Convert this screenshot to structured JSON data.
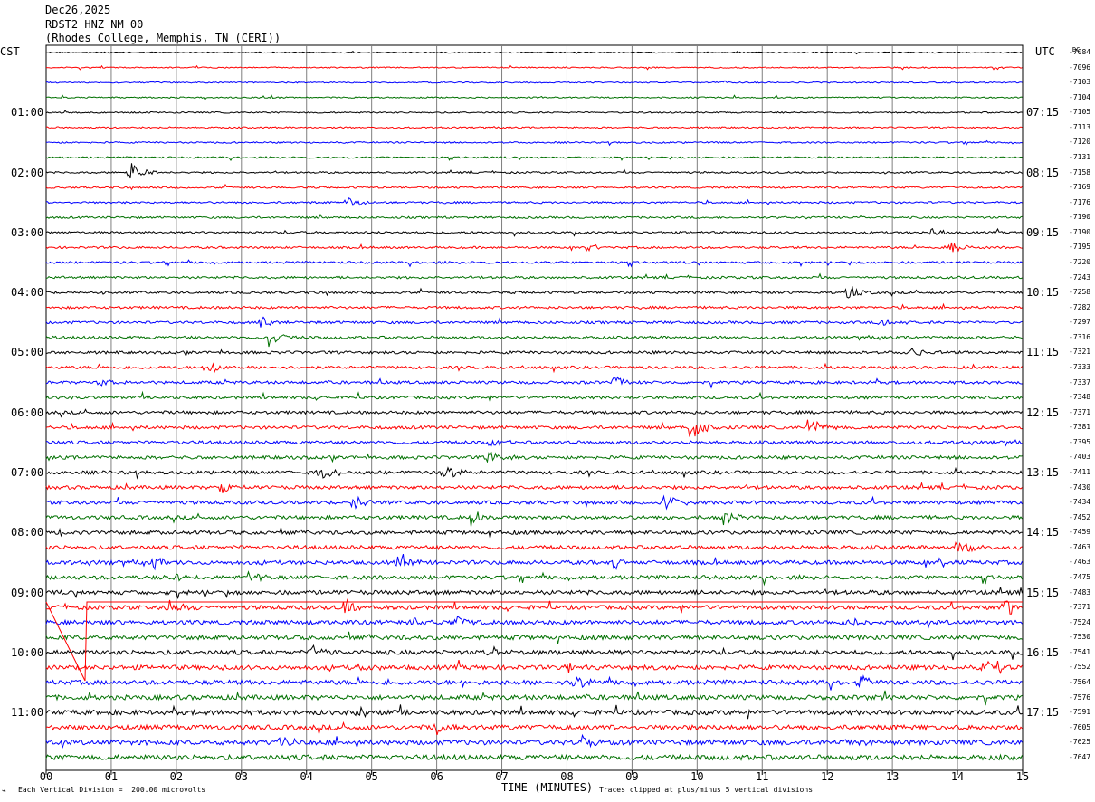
{
  "header": {
    "date": "Dec26,2025",
    "station": "RDST2 HNZ NM 00",
    "location": "(Rhodes College, Memphis, TN (CERI))"
  },
  "left_zone": "CST",
  "right_zone": "UTC",
  "dc_header": "DC",
  "footer": {
    "scale_note": "Each Vertical Division =  200.00 microvolts",
    "xaxis_title": "TIME (MINUTES)",
    "clip_note": "Traces clipped at plus/minus 5 vertical divisions",
    "mark": "⌁"
  },
  "colors": {
    "trace_cycle": [
      "#000000",
      "#ff0000",
      "#0000ff",
      "#007000"
    ],
    "grid": "#7f7f7f"
  },
  "chart_data": {
    "type": "line",
    "title": "RDST2 HNZ NM 00",
    "xlabel": "TIME (MINUTES)",
    "ylabel": "",
    "x_range": [
      0,
      15
    ],
    "x_ticks": [
      "00",
      "01",
      "02",
      "03",
      "04",
      "05",
      "06",
      "07",
      "08",
      "09",
      "10",
      "11",
      "12",
      "13",
      "14",
      "15"
    ],
    "trace_count": 48,
    "minutes_per_trace": 15,
    "left_time_labels": [
      "01:00",
      "02:00",
      "03:00",
      "04:00",
      "05:00",
      "06:00",
      "07:00",
      "08:00",
      "09:00",
      "10:00",
      "11:00"
    ],
    "right_time_labels": [
      "07:15",
      "08:15",
      "09:15",
      "10:15",
      "11:15",
      "12:15",
      "13:15",
      "14:15",
      "15:15",
      "16:15",
      "17:15"
    ],
    "time_label_every_n_traces": 4,
    "time_label_first_trace": 4,
    "dc_offsets": [
      "-7084",
      "-7096",
      "-7103",
      "-7104",
      "-7105",
      "-7113",
      "-7120",
      "-7131",
      "-7158",
      "-7169",
      "-7176",
      "-7190",
      "-7190",
      "-7195",
      "-7220",
      "-7243",
      "-7258",
      "-7282",
      "-7297",
      "-7316",
      "-7321",
      "-7333",
      "-7337",
      "-7348",
      "-7371",
      "-7381",
      "-7395",
      "-7403",
      "-7411",
      "-7430",
      "-7434",
      "-7452",
      "-7459",
      "-7463",
      "-7463",
      "-7475",
      "-7483",
      "-7371",
      "-7524",
      "-7530",
      "-7541",
      "-7552",
      "-7564",
      "-7576",
      "-7591",
      "-7605",
      "-7625",
      "-7647"
    ],
    "events": [
      {
        "trace": 8,
        "minute": 1.3,
        "amp": 1.7
      },
      {
        "trace": 10,
        "minute": 4.6,
        "amp": 1.0
      },
      {
        "trace": 12,
        "minute": 13.6,
        "amp": 0.8
      },
      {
        "trace": 13,
        "minute": 8.3,
        "amp": 0.6
      },
      {
        "trace": 13,
        "minute": 13.9,
        "amp": 1.0
      },
      {
        "trace": 16,
        "minute": 12.3,
        "amp": 0.9
      },
      {
        "trace": 18,
        "minute": 3.3,
        "amp": 0.8
      },
      {
        "trace": 18,
        "minute": 12.8,
        "amp": 0.9
      },
      {
        "trace": 19,
        "minute": 3.4,
        "amp": 1.6
      },
      {
        "trace": 20,
        "minute": 13.3,
        "amp": 0.9
      },
      {
        "trace": 21,
        "minute": 2.5,
        "amp": 1.0
      },
      {
        "trace": 22,
        "minute": 0.8,
        "amp": 0.8
      },
      {
        "trace": 22,
        "minute": 8.7,
        "amp": 1.2
      },
      {
        "trace": 25,
        "minute": 9.9,
        "amp": 2.2
      },
      {
        "trace": 25,
        "minute": 11.7,
        "amp": 1.5
      },
      {
        "trace": 26,
        "minute": 6.8,
        "amp": 0.8
      },
      {
        "trace": 27,
        "minute": 6.8,
        "amp": 1.0
      },
      {
        "trace": 28,
        "minute": 4.2,
        "amp": 1.2
      },
      {
        "trace": 28,
        "minute": 6.1,
        "amp": 1.2
      },
      {
        "trace": 29,
        "minute": 2.7,
        "amp": 0.9
      },
      {
        "trace": 30,
        "minute": 4.7,
        "amp": 1.0
      },
      {
        "trace": 30,
        "minute": 9.5,
        "amp": 1.2
      },
      {
        "trace": 31,
        "minute": 6.5,
        "amp": 1.4
      },
      {
        "trace": 31,
        "minute": 10.4,
        "amp": 1.1
      },
      {
        "trace": 32,
        "minute": 0.2,
        "amp": 0.8
      },
      {
        "trace": 33,
        "minute": 14.0,
        "amp": 1.2
      },
      {
        "trace": 34,
        "minute": 1.6,
        "amp": 1.0
      },
      {
        "trace": 34,
        "minute": 5.4,
        "amp": 1.0
      },
      {
        "trace": 34,
        "minute": 8.7,
        "amp": 1.4
      },
      {
        "trace": 35,
        "minute": 1.9,
        "amp": 1.2
      },
      {
        "trace": 35,
        "minute": 3.1,
        "amp": 0.8
      },
      {
        "trace": 37,
        "minute": 1.9,
        "amp": 1.4
      },
      {
        "trace": 37,
        "minute": 4.6,
        "amp": 1.3
      },
      {
        "trace": 37,
        "minute": 14.7,
        "amp": 1.5
      },
      {
        "trace": 38,
        "minute": 5.6,
        "amp": 0.8
      },
      {
        "trace": 38,
        "minute": 6.3,
        "amp": 0.9
      },
      {
        "trace": 38,
        "minute": 12.3,
        "amp": 0.7
      },
      {
        "trace": 40,
        "minute": 4.1,
        "amp": 0.9
      },
      {
        "trace": 40,
        "minute": 6.8,
        "amp": 1.0
      },
      {
        "trace": 41,
        "minute": 4.8,
        "amp": 0.9
      },
      {
        "trace": 41,
        "minute": 8.0,
        "amp": 0.8
      },
      {
        "trace": 41,
        "minute": 14.4,
        "amp": 0.9
      },
      {
        "trace": 42,
        "minute": 8.1,
        "amp": 1.0
      },
      {
        "trace": 42,
        "minute": 12.5,
        "amp": 1.0
      },
      {
        "trace": 44,
        "minute": 4.8,
        "amp": 0.7
      },
      {
        "trace": 45,
        "minute": 6.0,
        "amp": 1.3
      },
      {
        "trace": 46,
        "minute": 3.6,
        "amp": 1.0
      },
      {
        "trace": 46,
        "minute": 8.2,
        "amp": 1.0
      },
      {
        "trace": 46,
        "minute": 12.3,
        "amp": 0.8
      }
    ]
  }
}
